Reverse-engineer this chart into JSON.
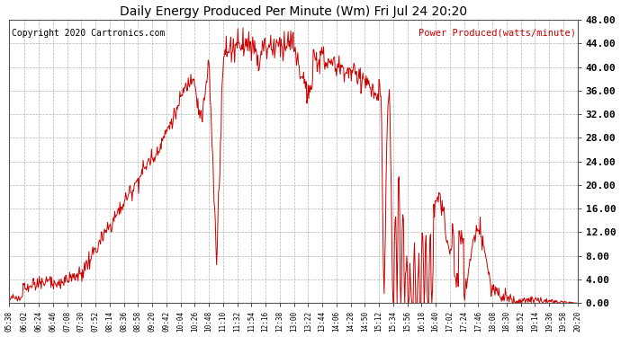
{
  "title": "Daily Energy Produced Per Minute (Wm) Fri Jul 24 20:20",
  "legend_label": "Power Produced(watts/minute)",
  "copyright_text": "Copyright 2020 Cartronics.com",
  "line_color": "#cc0000",
  "bg_color": "#ffffff",
  "grid_color": "#aaaaaa",
  "ylim": [
    0,
    48
  ],
  "yticks": [
    0,
    4,
    8,
    12,
    16,
    20,
    24,
    28,
    32,
    36,
    40,
    44,
    48
  ],
  "ytick_labels": [
    "0.00",
    "4.00",
    "8.00",
    "12.00",
    "16.00",
    "20.00",
    "24.00",
    "28.00",
    "32.00",
    "36.00",
    "40.00",
    "44.00",
    "48.00"
  ],
  "xtick_labels": [
    "05:38",
    "06:02",
    "06:24",
    "06:46",
    "07:08",
    "07:30",
    "07:52",
    "08:14",
    "08:36",
    "08:58",
    "09:20",
    "09:42",
    "10:04",
    "10:26",
    "10:48",
    "11:10",
    "11:32",
    "11:54",
    "12:16",
    "12:38",
    "13:00",
    "13:22",
    "13:44",
    "14:06",
    "14:28",
    "14:50",
    "15:12",
    "15:34",
    "15:56",
    "16:18",
    "16:40",
    "17:02",
    "17:24",
    "17:46",
    "18:08",
    "18:30",
    "18:52",
    "19:14",
    "19:36",
    "19:58",
    "20:20"
  ]
}
